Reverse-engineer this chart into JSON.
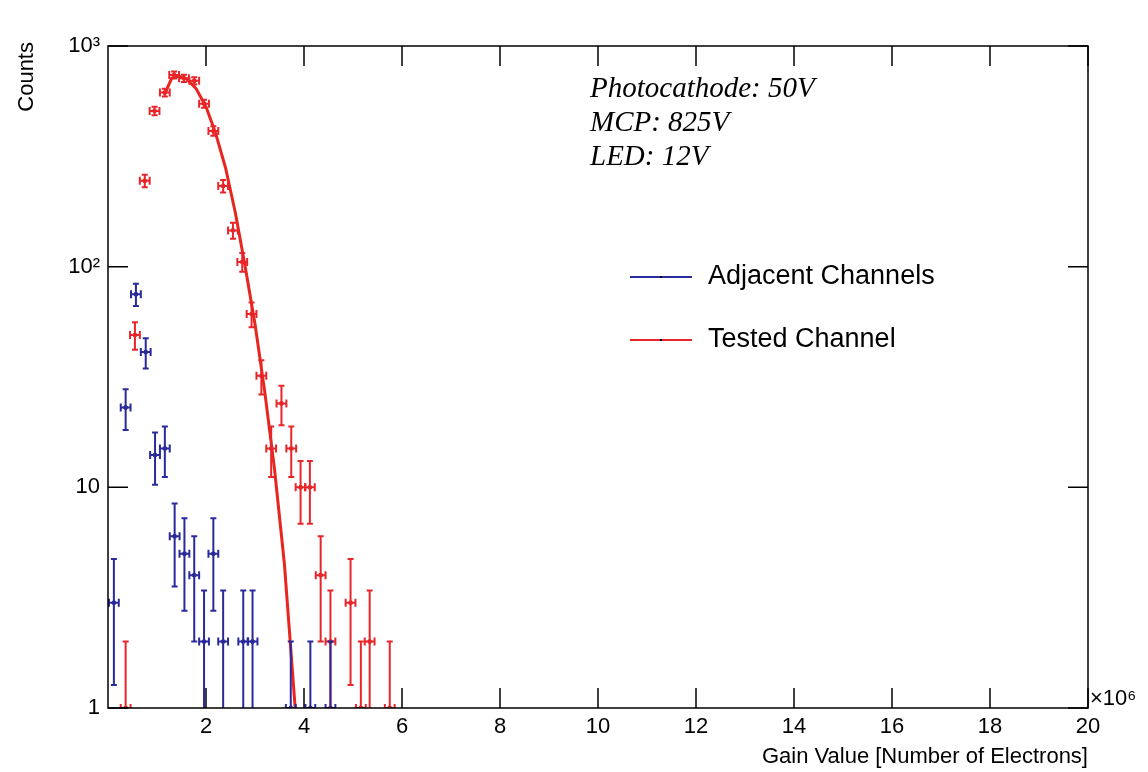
{
  "chart_data": {
    "type": "scatter",
    "xlabel": "Gain Value [Number of Electrons]",
    "ylabel": "Counts",
    "annotations": [
      "Photocathode: 50V",
      "MCP: 825V",
      "LED: 12V",
      "×10⁶"
    ],
    "series": [
      {
        "name": "Adjacent Channels",
        "color": "#2a2a9c",
        "x": [
          0.12,
          0.36,
          0.57,
          0.77,
          0.96,
          1.16,
          1.36,
          1.56,
          1.76,
          1.96,
          2.15,
          2.35,
          2.76,
          2.95,
          3.73,
          4.13,
          4.54
        ],
        "values": [
          3,
          23,
          75,
          41,
          14,
          15,
          6,
          5,
          4,
          2,
          5,
          2,
          2,
          2,
          1,
          1,
          1
        ],
        "errors": [
          1.73,
          4.8,
          8.66,
          6.4,
          3.74,
          3.87,
          2.45,
          2.24,
          2,
          [
            1,
            3.41
          ],
          2.24,
          [
            1,
            3.41
          ],
          [
            1,
            3.41
          ],
          [
            1,
            3.41
          ],
          1,
          1,
          1
        ],
        "xerrors": [
          0.1,
          0.1,
          0.1,
          0.1,
          0.1,
          0.1,
          0.1,
          0.1,
          0.1,
          0.1,
          0.1,
          0.1,
          0.1,
          0.1,
          0.1,
          0.1,
          0.1
        ]
      },
      {
        "name": "Tested Channel",
        "color": "#e8262a",
        "x": [
          0.36,
          0.55,
          0.75,
          0.95,
          1.16,
          1.35,
          1.55,
          1.76,
          1.96,
          2.15,
          2.35,
          2.55,
          2.74,
          2.93,
          3.13,
          3.33,
          3.54,
          3.74,
          3.93,
          4.12,
          4.34,
          4.54,
          4.95,
          5.16,
          5.34,
          5.75
        ],
        "values": [
          1,
          49,
          245,
          508,
          615,
          739,
          714,
          695,
          548,
          412,
          232,
          146,
          105,
          61,
          32,
          15,
          24,
          15,
          10,
          10,
          4,
          2,
          3,
          1,
          2,
          1
        ],
        "errors": [
          1,
          7,
          15.7,
          22.5,
          24.8,
          27.2,
          26.7,
          26.4,
          23.4,
          20.3,
          15.2,
          12.1,
          10.2,
          7.8,
          5.66,
          3.87,
          4.9,
          3.87,
          3.16,
          3.16,
          2,
          [
            1,
            3.41
          ],
          1.73,
          1,
          [
            1,
            3.41
          ],
          1
        ],
        "xerrors": [
          0.1,
          0.1,
          0.1,
          0.1,
          0.1,
          0.1,
          0.1,
          0.1,
          0.1,
          0.1,
          0.1,
          0.1,
          0.1,
          0.1,
          0.1,
          0.1,
          0.1,
          0.1,
          0.1,
          0.1,
          0.1,
          0.1,
          0.1,
          0.1,
          0.1,
          0.1
        ]
      },
      {
        "color": "#e8251f",
        "type": "line",
        "marker": "none",
        "x": [
          1.15,
          1.3,
          1.45,
          1.6,
          1.8,
          2.0,
          2.2,
          2.4,
          2.6,
          2.8,
          3.0,
          3.2,
          3.4,
          3.6,
          3.82
        ],
        "values": [
          600,
          715,
          730,
          710,
          640,
          530,
          400,
          280,
          175,
          100,
          55,
          27,
          12,
          4.5,
          1
        ]
      }
    ],
    "xlim": [
      0,
      20
    ],
    "xticks": [
      2,
      4,
      6,
      8,
      10,
      12,
      14,
      16,
      18,
      20
    ],
    "ylim": [
      1,
      1000
    ],
    "yticks": [
      1,
      10,
      {
        "value": 100,
        "label": "10²"
      },
      {
        "value": 1000,
        "label": "10³"
      }
    ],
    "log": "y",
    "grid": false,
    "legend": "right",
    "marker": "circle"
  }
}
